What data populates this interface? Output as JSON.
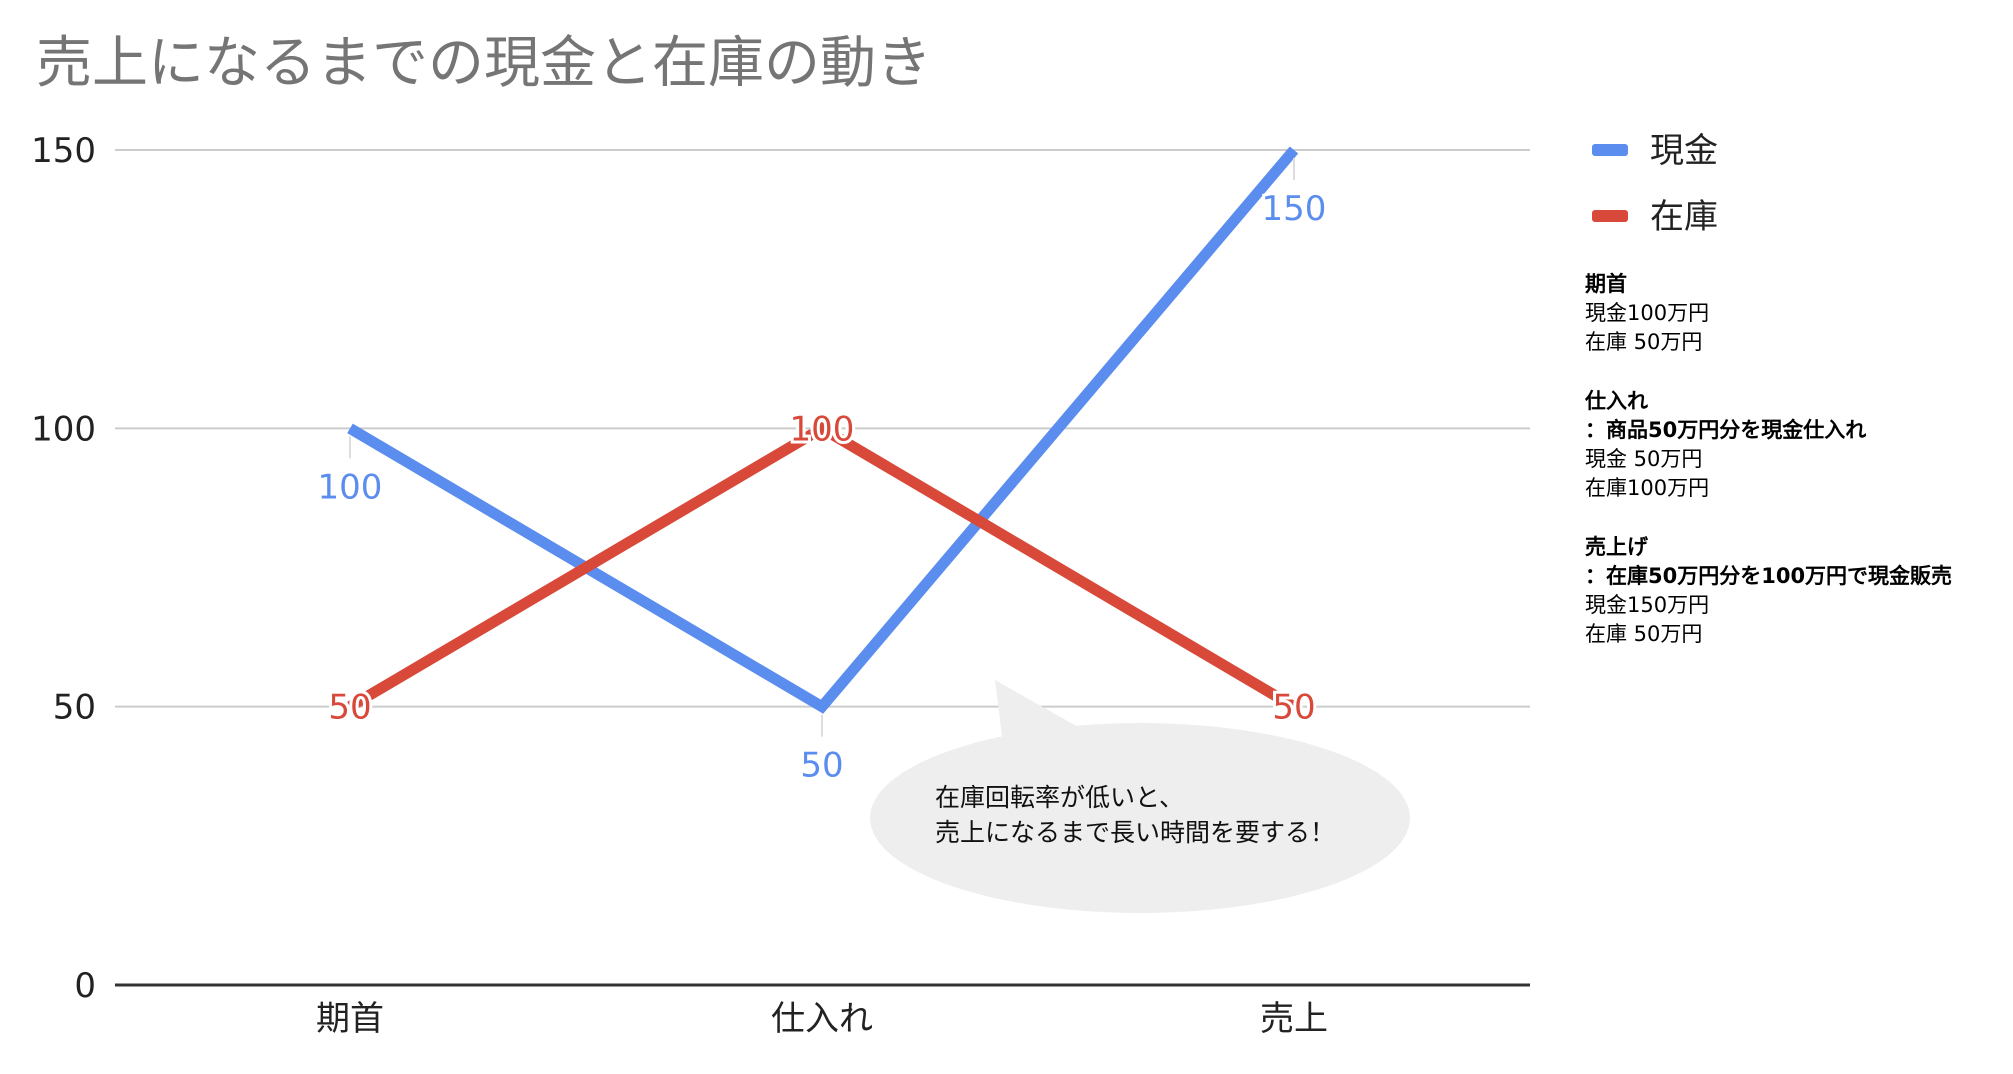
{
  "chart_data": {
    "type": "line",
    "title": "売上になるまでの現金と在庫の動き",
    "categories": [
      "期首",
      "仕入れ",
      "売上"
    ],
    "series": [
      {
        "name": "現金",
        "values": [
          100,
          50,
          150
        ],
        "color": "#5b8def"
      },
      {
        "name": "在庫",
        "values": [
          50,
          100,
          50
        ],
        "color": "#d9493a"
      }
    ],
    "ylim": [
      0,
      150
    ],
    "yticks": [
      0,
      50,
      100,
      150
    ],
    "grid": true,
    "legend": "right",
    "data_labels": true
  },
  "notes": [
    {
      "heading": "期首",
      "subheading": "",
      "lines": [
        "現金100万円",
        "在庫 50万円"
      ]
    },
    {
      "heading": "仕入れ",
      "subheading": "：商品50万円分を現金仕入れ",
      "lines": [
        "現金 50万円",
        "在庫100万円"
      ]
    },
    {
      "heading": "売上げ",
      "subheading": "：在庫50万円分を100万円で現金販売",
      "lines": [
        "現金150万円",
        "在庫 50万円"
      ]
    }
  ],
  "callout": {
    "lines": [
      "在庫回転率が低いと、",
      "売上になるまで長い時間を要する！"
    ],
    "color": "#eeeeee"
  }
}
